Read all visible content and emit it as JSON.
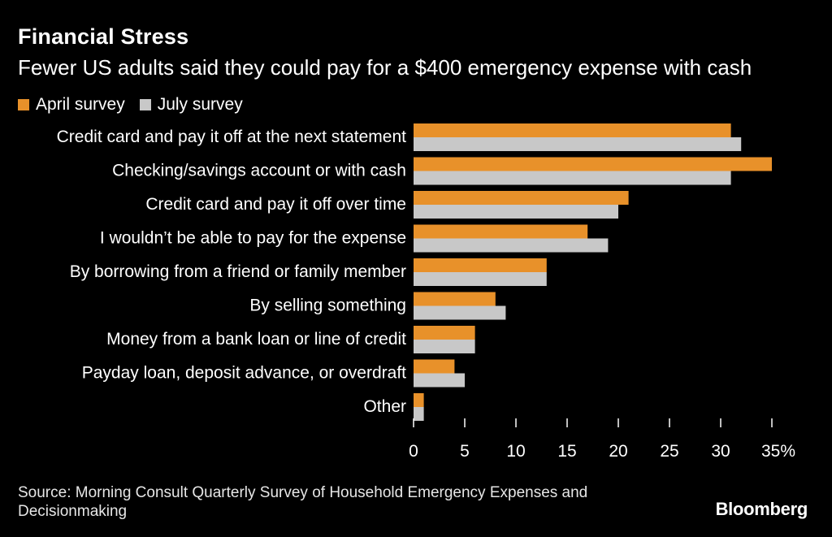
{
  "colors": {
    "background": "#000000",
    "april": "#E8912A",
    "july": "#C8C8C8",
    "text": "#FFFFFF",
    "axis": "#FFFFFF"
  },
  "chart_data": {
    "type": "bar",
    "orientation": "horizontal",
    "title": "Financial Stress",
    "subtitle": "Fewer US adults said they could pay for a $400 emergency expense with cash",
    "categories": [
      "Credit card and pay it off at the next statement",
      "Checking/savings account or with cash",
      "Credit card and pay it off over time",
      "I wouldn’t be able to pay for the expense",
      "By borrowing from a friend or family member",
      "By selling something",
      "Money from a bank loan or line of credit",
      "Payday loan, deposit advance, or overdraft",
      "Other"
    ],
    "series": [
      {
        "name": "April survey",
        "values": [
          31,
          35,
          21,
          17,
          13,
          8,
          6,
          4,
          1
        ]
      },
      {
        "name": "July survey",
        "values": [
          32,
          31,
          20,
          19,
          13,
          9,
          6,
          5,
          1
        ]
      }
    ],
    "xlim": [
      0,
      35
    ],
    "xticks": [
      0,
      5,
      10,
      15,
      20,
      25,
      30,
      35
    ],
    "xtick_labels": [
      "0",
      "5",
      "10",
      "15",
      "20",
      "25",
      "30",
      "35%"
    ],
    "legend_position": "top-left",
    "grid": false
  },
  "footer": {
    "source": "Source: Morning Consult Quarterly Survey of Household Emergency Expenses and Decisionmaking",
    "logo": "Bloomberg"
  }
}
